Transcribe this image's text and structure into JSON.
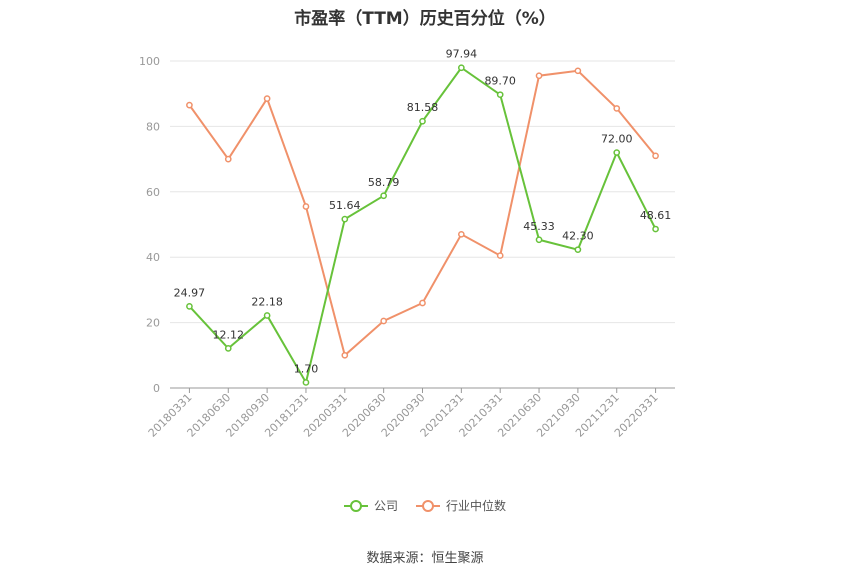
{
  "title": "市盈率（TTM）历史百分位（%）",
  "source": "数据来源：恒生聚源",
  "colors": {
    "company": "#67c23a",
    "industry": "#f0916a",
    "grid": "#e6e6e6",
    "axis": "#999999"
  },
  "chart_data": {
    "type": "line",
    "title": "市盈率（TTM）历史百分位（%）",
    "categories": [
      "20180331",
      "20180630",
      "20180930",
      "20181231",
      "20200331",
      "20200630",
      "20200930",
      "20201231",
      "20210331",
      "20210630",
      "20210930",
      "20211231",
      "20220331"
    ],
    "ylim": [
      0,
      100
    ],
    "yticks": [
      0,
      20,
      40,
      60,
      80,
      100
    ],
    "grid": true,
    "legend_position": "bottom",
    "series": [
      {
        "name": "公司",
        "values": [
          24.97,
          12.12,
          22.18,
          1.7,
          51.64,
          58.79,
          81.58,
          97.94,
          89.7,
          45.33,
          42.3,
          72.0,
          48.61
        ],
        "labels": [
          "24.97",
          "12.12",
          "22.18",
          "1.70",
          "51.64",
          "58.79",
          "81.58",
          "97.94",
          "89.70",
          "45.33",
          "42.30",
          "72.00",
          "48.61"
        ]
      },
      {
        "name": "行业中位数",
        "values": [
          86.5,
          70.0,
          88.5,
          55.5,
          10.0,
          20.5,
          26.0,
          47.0,
          40.5,
          95.5,
          97.0,
          85.5,
          71.0
        ]
      }
    ]
  }
}
